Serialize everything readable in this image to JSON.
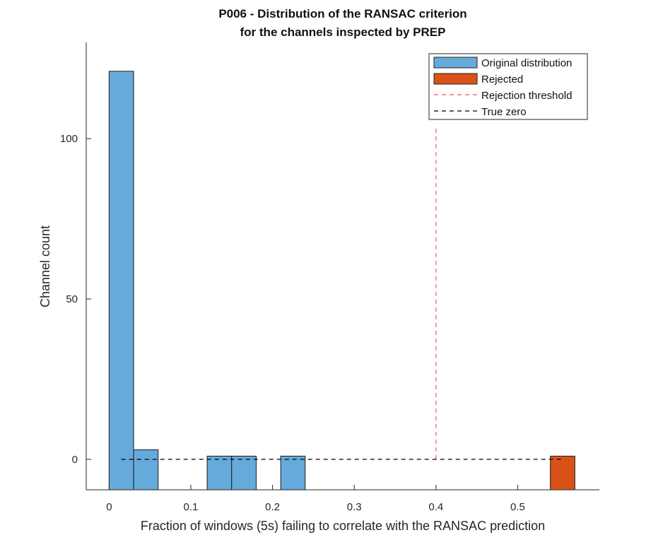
{
  "chart_data": {
    "type": "bar",
    "title": "P006 - Distribution of the RANSAC criterion",
    "subtitle": "for the channels inspected by PREP",
    "xlabel": "Fraction of windows (5s) failing to correlate with the RANSAC prediction",
    "ylabel": "Channel count",
    "xlim": [
      -0.028,
      0.6
    ],
    "ylim": [
      -9.5,
      130
    ],
    "xticks": [
      0,
      0.1,
      0.2,
      0.3,
      0.4,
      0.5
    ],
    "xtick_labels": [
      "0",
      "0.1",
      "0.2",
      "0.3",
      "0.4",
      "0.5"
    ],
    "yticks": [
      0,
      50,
      100
    ],
    "ytick_labels": [
      "0",
      "50",
      "100"
    ],
    "grid": false,
    "legend_position": "top-right",
    "series": [
      {
        "name": "Original distribution",
        "color": "#65AADB",
        "bins": [
          {
            "x0": 0.0,
            "x1": 0.03,
            "count": 121
          },
          {
            "x0": 0.03,
            "x1": 0.06,
            "count": 3
          },
          {
            "x0": 0.12,
            "x1": 0.15,
            "count": 1
          },
          {
            "x0": 0.15,
            "x1": 0.18,
            "count": 1
          },
          {
            "x0": 0.21,
            "x1": 0.24,
            "count": 1
          }
        ]
      },
      {
        "name": "Rejected",
        "color": "#D95319",
        "bins": [
          {
            "x0": 0.54,
            "x1": 0.57,
            "count": 1
          }
        ]
      }
    ],
    "lines": [
      {
        "name": "Rejection threshold",
        "color": "#FF5555",
        "style": "dashed",
        "orientation": "vertical",
        "x": 0.4,
        "y_from": 0,
        "y_to": 104
      },
      {
        "name": "True zero",
        "color": "#000000",
        "style": "dashed",
        "orientation": "horizontal",
        "y": 0,
        "x_from": 0.015,
        "x_to": 0.555
      }
    ]
  }
}
